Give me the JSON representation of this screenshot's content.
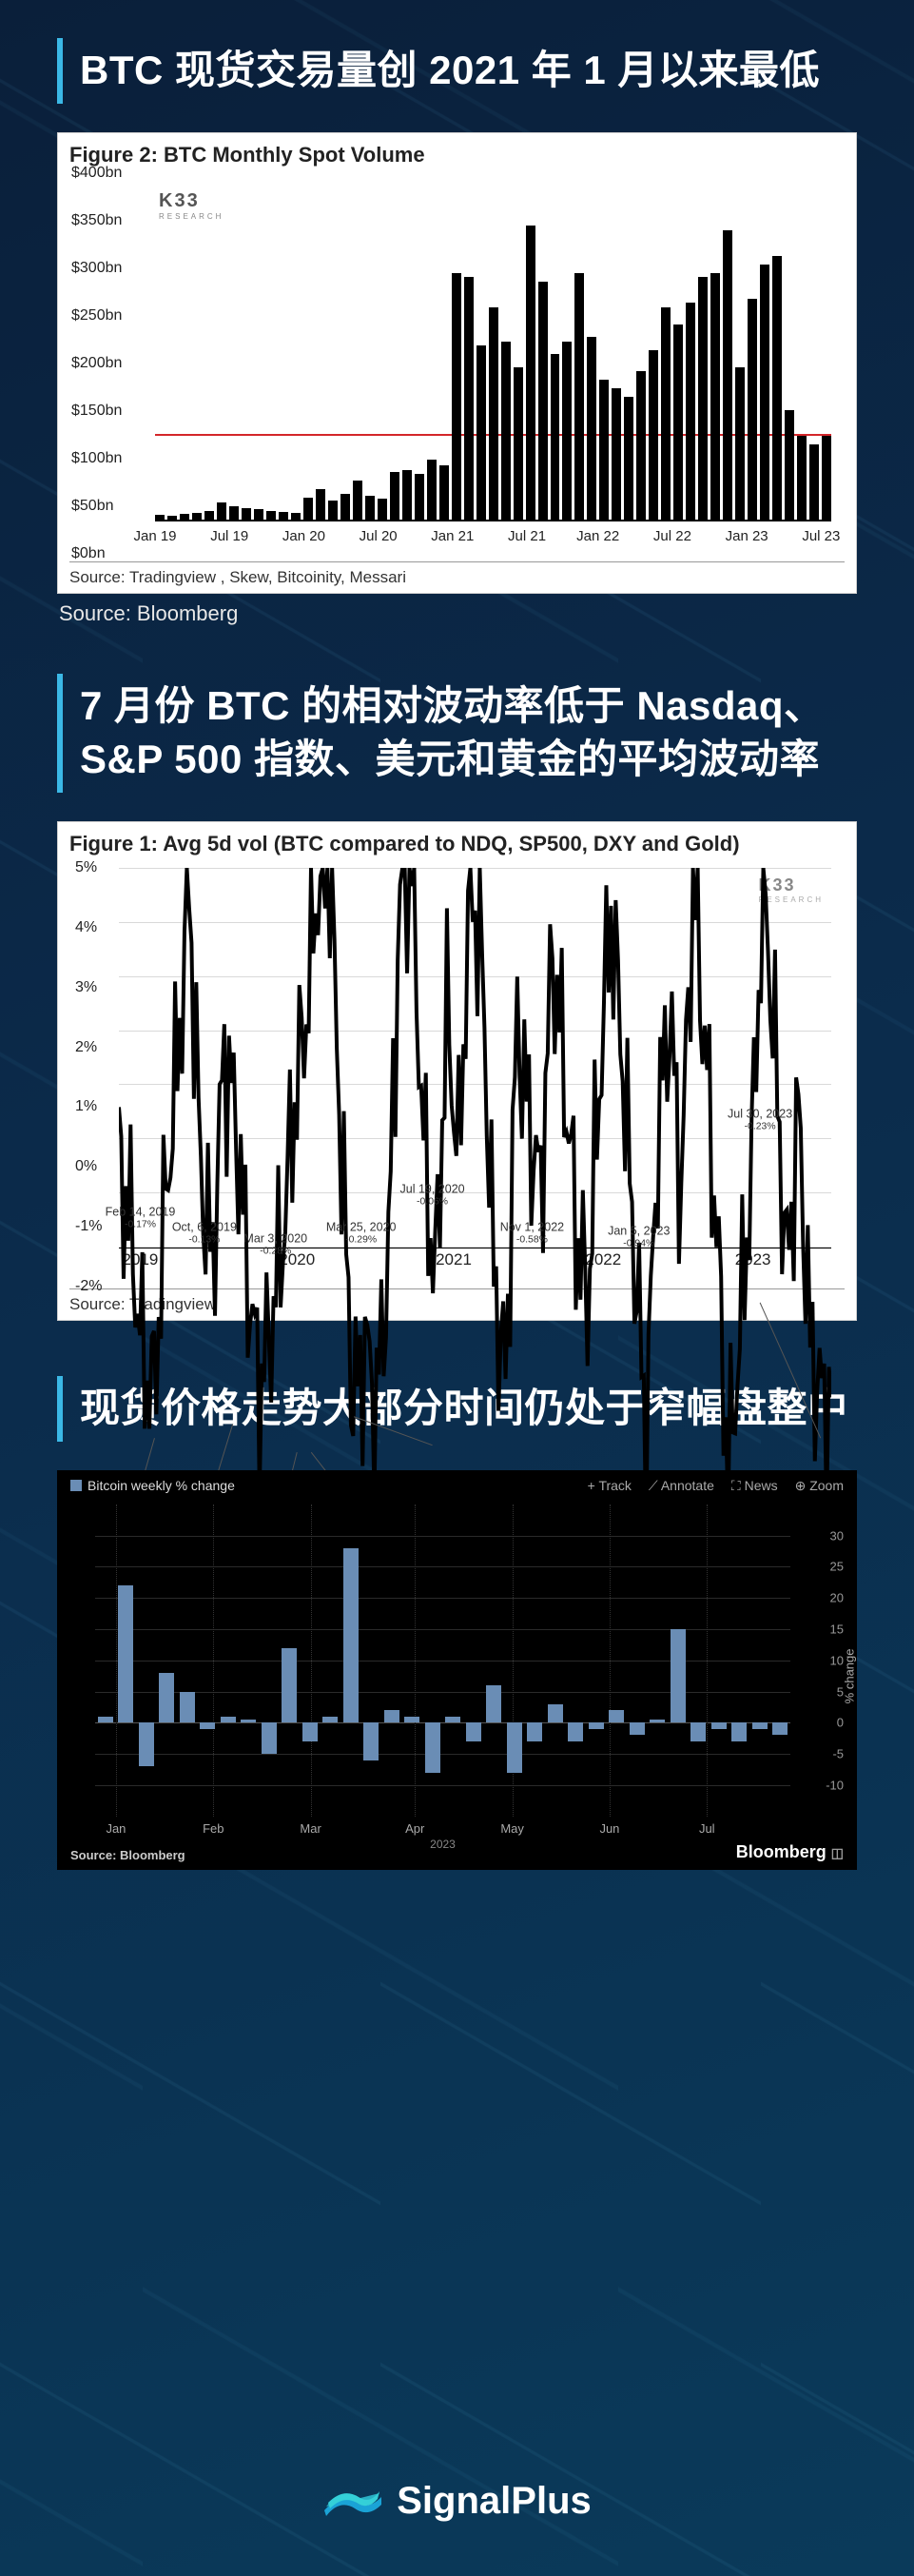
{
  "section1": {
    "title": "BTC 现货交易量创 2021 年 1 月以来最低",
    "figure_title": "Figure 2: BTC Monthly Spot Volume",
    "logo": "K33",
    "logo_sub": "RESEARCH",
    "y_axis": {
      "min": 0,
      "max": 400,
      "step": 50,
      "labels": [
        "$0bn",
        "$50bn",
        "$100bn",
        "$150bn",
        "$200bn",
        "$250bn",
        "$300bn",
        "$350bn",
        "$400bn"
      ]
    },
    "ref_line_value": 100,
    "ref_color": "#d3262a",
    "bar_color": "#000000",
    "bars": [
      8,
      6,
      9,
      10,
      12,
      22,
      18,
      15,
      14,
      12,
      11,
      10,
      28,
      38,
      24,
      32,
      48,
      30,
      26,
      58,
      60,
      55,
      72,
      65,
      290,
      285,
      205,
      250,
      210,
      180,
      345,
      280,
      195,
      210,
      290,
      215,
      165,
      155,
      145,
      175,
      200,
      250,
      230,
      255,
      285,
      290,
      340,
      180,
      260,
      300,
      310,
      130,
      100,
      90,
      100
    ],
    "x_labels": [
      {
        "t": "Jan 19",
        "p": 0
      },
      {
        "t": "Jul 19",
        "p": 0.11
      },
      {
        "t": "Jan 20",
        "p": 0.22
      },
      {
        "t": "Jul 20",
        "p": 0.33
      },
      {
        "t": "Jan 21",
        "p": 0.44
      },
      {
        "t": "Jul 21",
        "p": 0.55
      },
      {
        "t": "Jan 22",
        "p": 0.655
      },
      {
        "t": "Jul 22",
        "p": 0.765
      },
      {
        "t": "Jan 23",
        "p": 0.875
      },
      {
        "t": "Jul 23",
        "p": 0.985
      }
    ],
    "figure_source": "Source: Tradingview , Skew, Bitcoinity, Messari",
    "outer_source": "Source: Bloomberg"
  },
  "section2": {
    "title": "7 月份 BTC 的相对波动率低于 Nasdaq、S&P 500 指数、美元和黄金的平均波动率",
    "figure_title": "Figure 1: Avg 5d vol (BTC compared to NDQ, SP500, DXY and Gold)",
    "logo": "K33",
    "logo_sub": "RESEARCH",
    "y_axis": {
      "min": -2,
      "max": 5,
      "step": 1,
      "labels": [
        "-2%",
        "-1%",
        "0%",
        "1%",
        "2%",
        "3%",
        "4%",
        "5%"
      ]
    },
    "x_labels": [
      {
        "t": "2019",
        "p": 0.03
      },
      {
        "t": "2020",
        "p": 0.25
      },
      {
        "t": "2021",
        "p": 0.47
      },
      {
        "t": "2022",
        "p": 0.68
      },
      {
        "t": "2023",
        "p": 0.89
      }
    ],
    "line_color": "#000000",
    "grid_color": "#d9d9d9",
    "series": [
      2.1,
      1.5,
      0.2,
      -0.17,
      1.8,
      3.1,
      4.8,
      2.0,
      1.1,
      3.2,
      2.5,
      1.0,
      -0.13,
      0.5,
      1.4,
      2.7,
      3.6,
      4.9,
      5.0,
      2.2,
      -0.28,
      0.3,
      -0.29,
      1.2,
      4.8,
      5.0,
      2.3,
      0.9,
      3.6,
      2.1,
      5.0,
      4.0,
      1.0,
      -0.06,
      3.5,
      2.5,
      1.8,
      4.2,
      3.0,
      1.5,
      0.7,
      2.9,
      4.6,
      3.1,
      1.2,
      -0.58,
      2.4,
      3.6,
      1.8,
      4.9,
      3.3,
      1.5,
      -0.94,
      0.4,
      2.1,
      5.0,
      3.2,
      1.0,
      2.6,
      0.3,
      -0.23
    ],
    "annotations": [
      {
        "label": "Feb 14, 2019",
        "val": "-0.17%",
        "xp": 0.05,
        "yp": 0.8,
        "tx": 0.03,
        "ty": 0.9
      },
      {
        "label": "Oct, 6, 2019",
        "val": "-0.13%",
        "xp": 0.16,
        "yp": 0.78,
        "tx": 0.12,
        "ty": 0.94
      },
      {
        "label": "Mar 3, 2020",
        "val": "-0.28%",
        "xp": 0.25,
        "yp": 0.82,
        "tx": 0.22,
        "ty": 0.97
      },
      {
        "label": "Mar 25, 2020",
        "val": "-0.29%",
        "xp": 0.27,
        "yp": 0.82,
        "tx": 0.34,
        "ty": 0.94
      },
      {
        "label": "Jul 19, 2020",
        "val": "-0.06%",
        "xp": 0.33,
        "yp": 0.77,
        "tx": 0.44,
        "ty": 0.84
      },
      {
        "label": "Nov 1, 2022",
        "val": "-0.58%",
        "xp": 0.78,
        "yp": 0.85,
        "tx": 0.58,
        "ty": 0.94
      },
      {
        "label": "Jan 5, 2023",
        "val": "-0.94%",
        "xp": 0.82,
        "yp": 0.9,
        "tx": 0.73,
        "ty": 0.95
      },
      {
        "label": "Jul 30, 2023",
        "val": "-0.23%",
        "xp": 0.985,
        "yp": 0.8,
        "tx": 0.9,
        "ty": 0.64
      }
    ],
    "figure_source": "Source: Tradingview"
  },
  "section3": {
    "title": "现货价格走势大部分时间仍处于窄幅盘整中",
    "legend": "Bitcoin weekly % change",
    "toolbar": [
      "+ Track",
      "⟋ Annotate",
      "⛶ News",
      "⊕ Zoom"
    ],
    "bar_color": "#6a8db5",
    "bg": "#000000",
    "grid_color": "#2a2a2a",
    "y_axis": {
      "min": -15,
      "max": 35,
      "labels": [
        {
          "t": "30",
          "v": 30
        },
        {
          "t": "25",
          "v": 25
        },
        {
          "t": "20",
          "v": 20
        },
        {
          "t": "15",
          "v": 15
        },
        {
          "t": "10",
          "v": 10
        },
        {
          "t": "5",
          "v": 5
        },
        {
          "t": "0",
          "v": 0
        },
        {
          "t": "-5",
          "v": -5
        },
        {
          "t": "-10",
          "v": -10
        }
      ]
    },
    "r_axis_title": "% change",
    "bars": [
      1,
      22,
      -7,
      8,
      5,
      -1,
      1,
      0.5,
      -5,
      12,
      -3,
      1,
      28,
      -6,
      2,
      1,
      -8,
      1,
      -3,
      6,
      -8,
      -3,
      3,
      -3,
      -1,
      2,
      -2,
      0.5,
      15,
      -3,
      -1,
      -3,
      -1,
      -2
    ],
    "x_labels": [
      {
        "t": "Jan",
        "p": 0.03
      },
      {
        "t": "Feb",
        "p": 0.17
      },
      {
        "t": "Mar",
        "p": 0.31
      },
      {
        "t": "Apr",
        "p": 0.46
      },
      {
        "t": "May",
        "p": 0.6
      },
      {
        "t": "Jun",
        "p": 0.74
      },
      {
        "t": "Jul",
        "p": 0.88
      }
    ],
    "year": "2023",
    "source": "Source: Bloomberg",
    "brand": "Bloomberg"
  },
  "footer": {
    "brand": "SignalPlus"
  }
}
